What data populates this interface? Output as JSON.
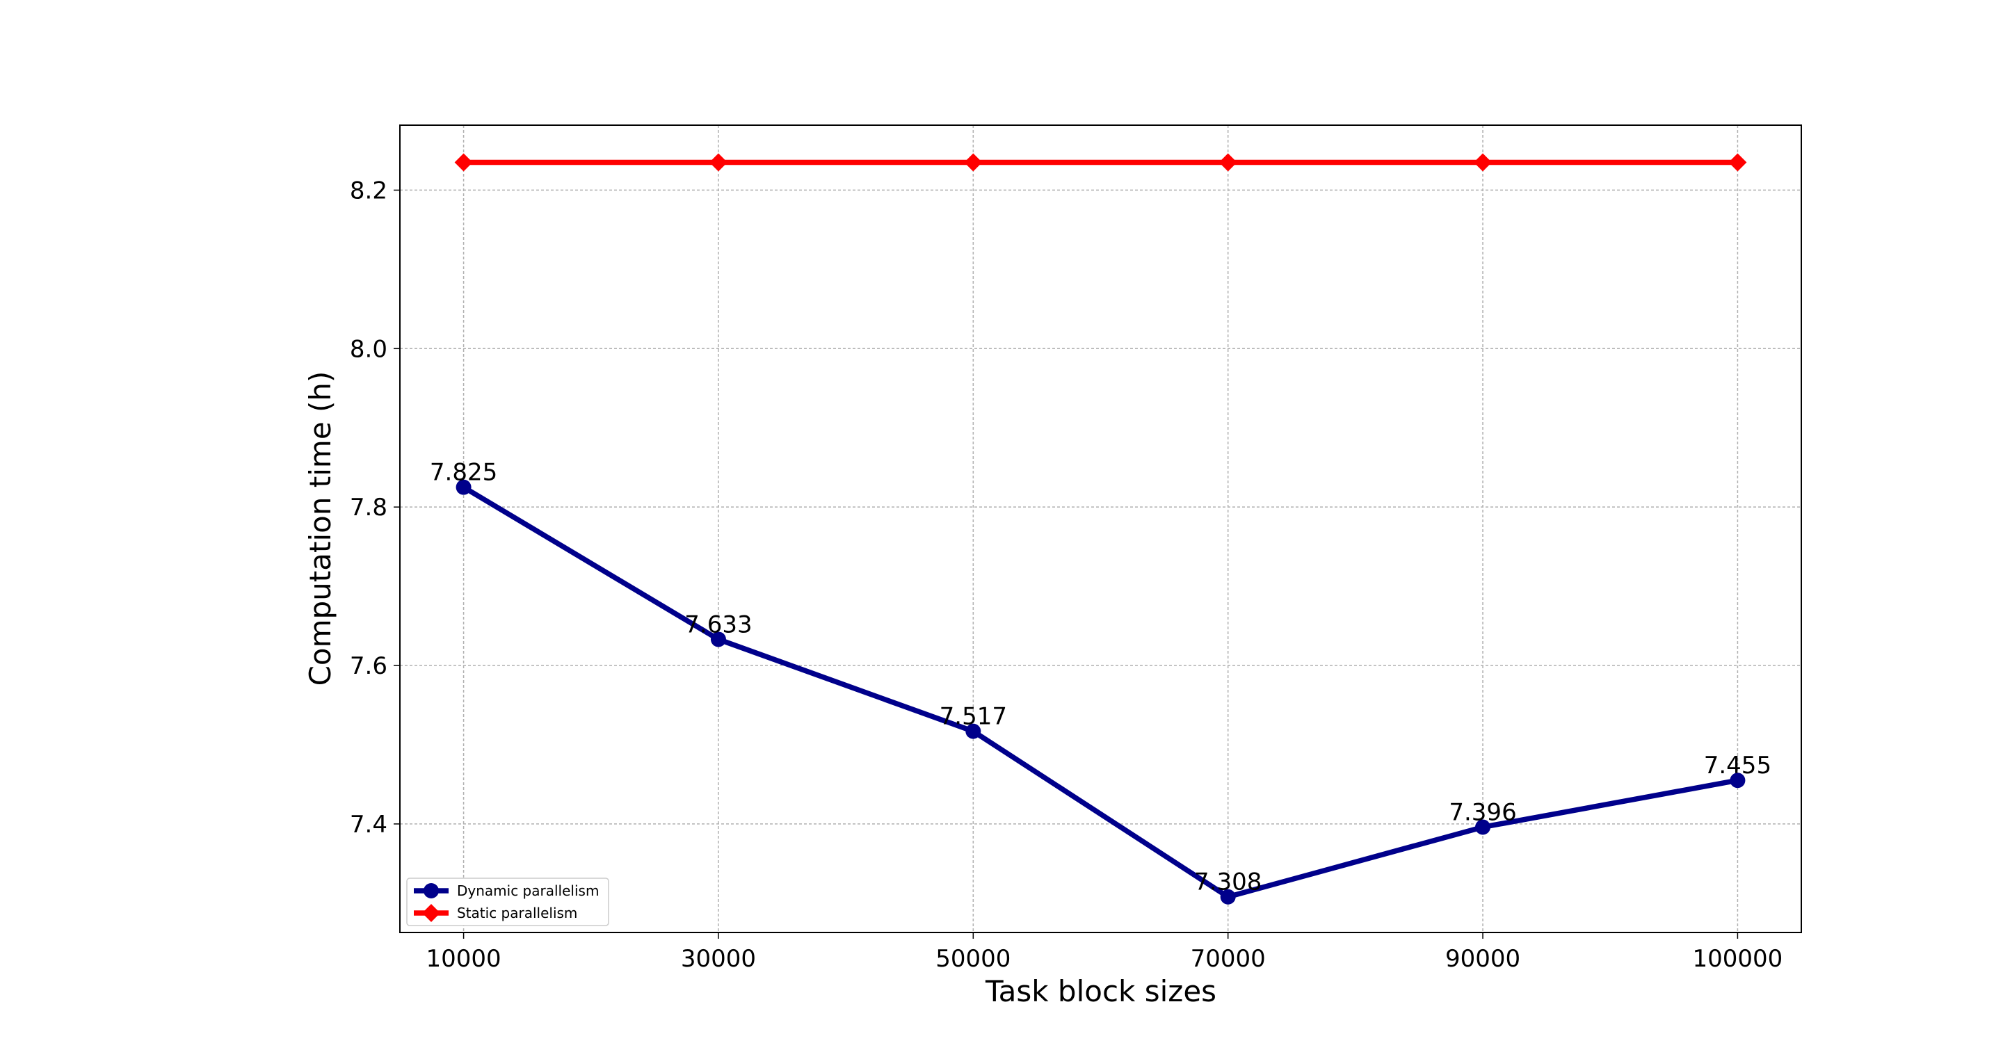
{
  "chart_data": {
    "type": "line",
    "x_label": "Task block sizes",
    "y_label": "Computation time (h)",
    "categories": [
      "10000",
      "30000",
      "50000",
      "70000",
      "90000",
      "100000"
    ],
    "series": [
      {
        "name": "Dynamic parallelism",
        "color": "#00008b",
        "marker": "circle",
        "values": [
          7.825,
          7.633,
          7.517,
          7.308,
          7.396,
          7.455
        ],
        "show_labels": true
      },
      {
        "name": "Static parallelism",
        "color": "#ff0000",
        "marker": "diamond",
        "values": [
          8.235,
          8.235,
          8.235,
          8.235,
          8.235,
          8.235
        ],
        "show_labels": false
      }
    ],
    "ylim": [
      7.263,
      8.282
    ],
    "yticks": [
      7.4,
      7.6,
      7.8,
      {
        "value": 8,
        "label": "8.0"
      },
      8.2
    ],
    "grid": true,
    "legend": "lower left"
  }
}
